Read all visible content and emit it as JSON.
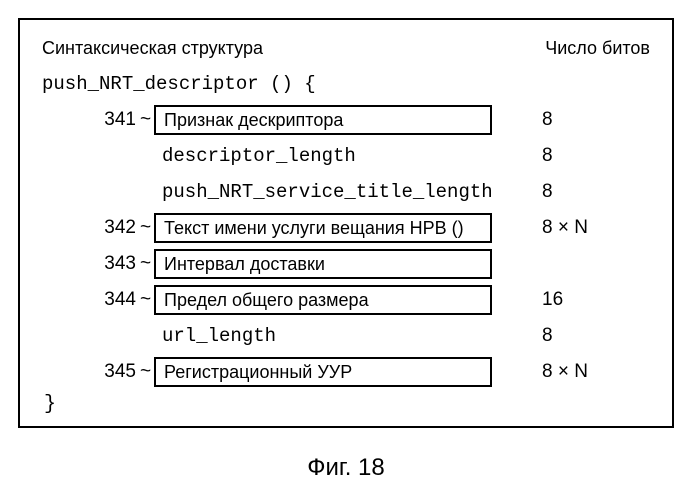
{
  "header": {
    "left": "Синтаксическая структура",
    "right": "Число битов"
  },
  "code_open": "push_NRT_descriptor () {",
  "rows": [
    {
      "ref": "341",
      "tick": true,
      "boxed": true,
      "label": "Признак дескриптора",
      "bits": "8"
    },
    {
      "ref": "",
      "tick": false,
      "boxed": false,
      "label": "descriptor_length",
      "bits": "8"
    },
    {
      "ref": "",
      "tick": false,
      "boxed": false,
      "label": "push_NRT_service_title_length",
      "bits": "8"
    },
    {
      "ref": "342",
      "tick": true,
      "boxed": true,
      "label": "Текст имени услуги вещания НРВ ()",
      "bits": "8 × N"
    },
    {
      "ref": "343",
      "tick": true,
      "boxed": true,
      "label": "Интервал доставки",
      "bits": ""
    },
    {
      "ref": "344",
      "tick": true,
      "boxed": true,
      "label": "Предел общего размера",
      "bits": "16"
    },
    {
      "ref": "",
      "tick": false,
      "boxed": false,
      "label": "url_length",
      "bits": "8"
    },
    {
      "ref": "345",
      "tick": true,
      "boxed": true,
      "label": "Регистрационный УУР",
      "bits": "8 × N"
    }
  ],
  "code_close": "}",
  "caption": "Фиг. 18",
  "colors": {
    "border": "#000000",
    "background": "#ffffff",
    "text": "#000000"
  }
}
